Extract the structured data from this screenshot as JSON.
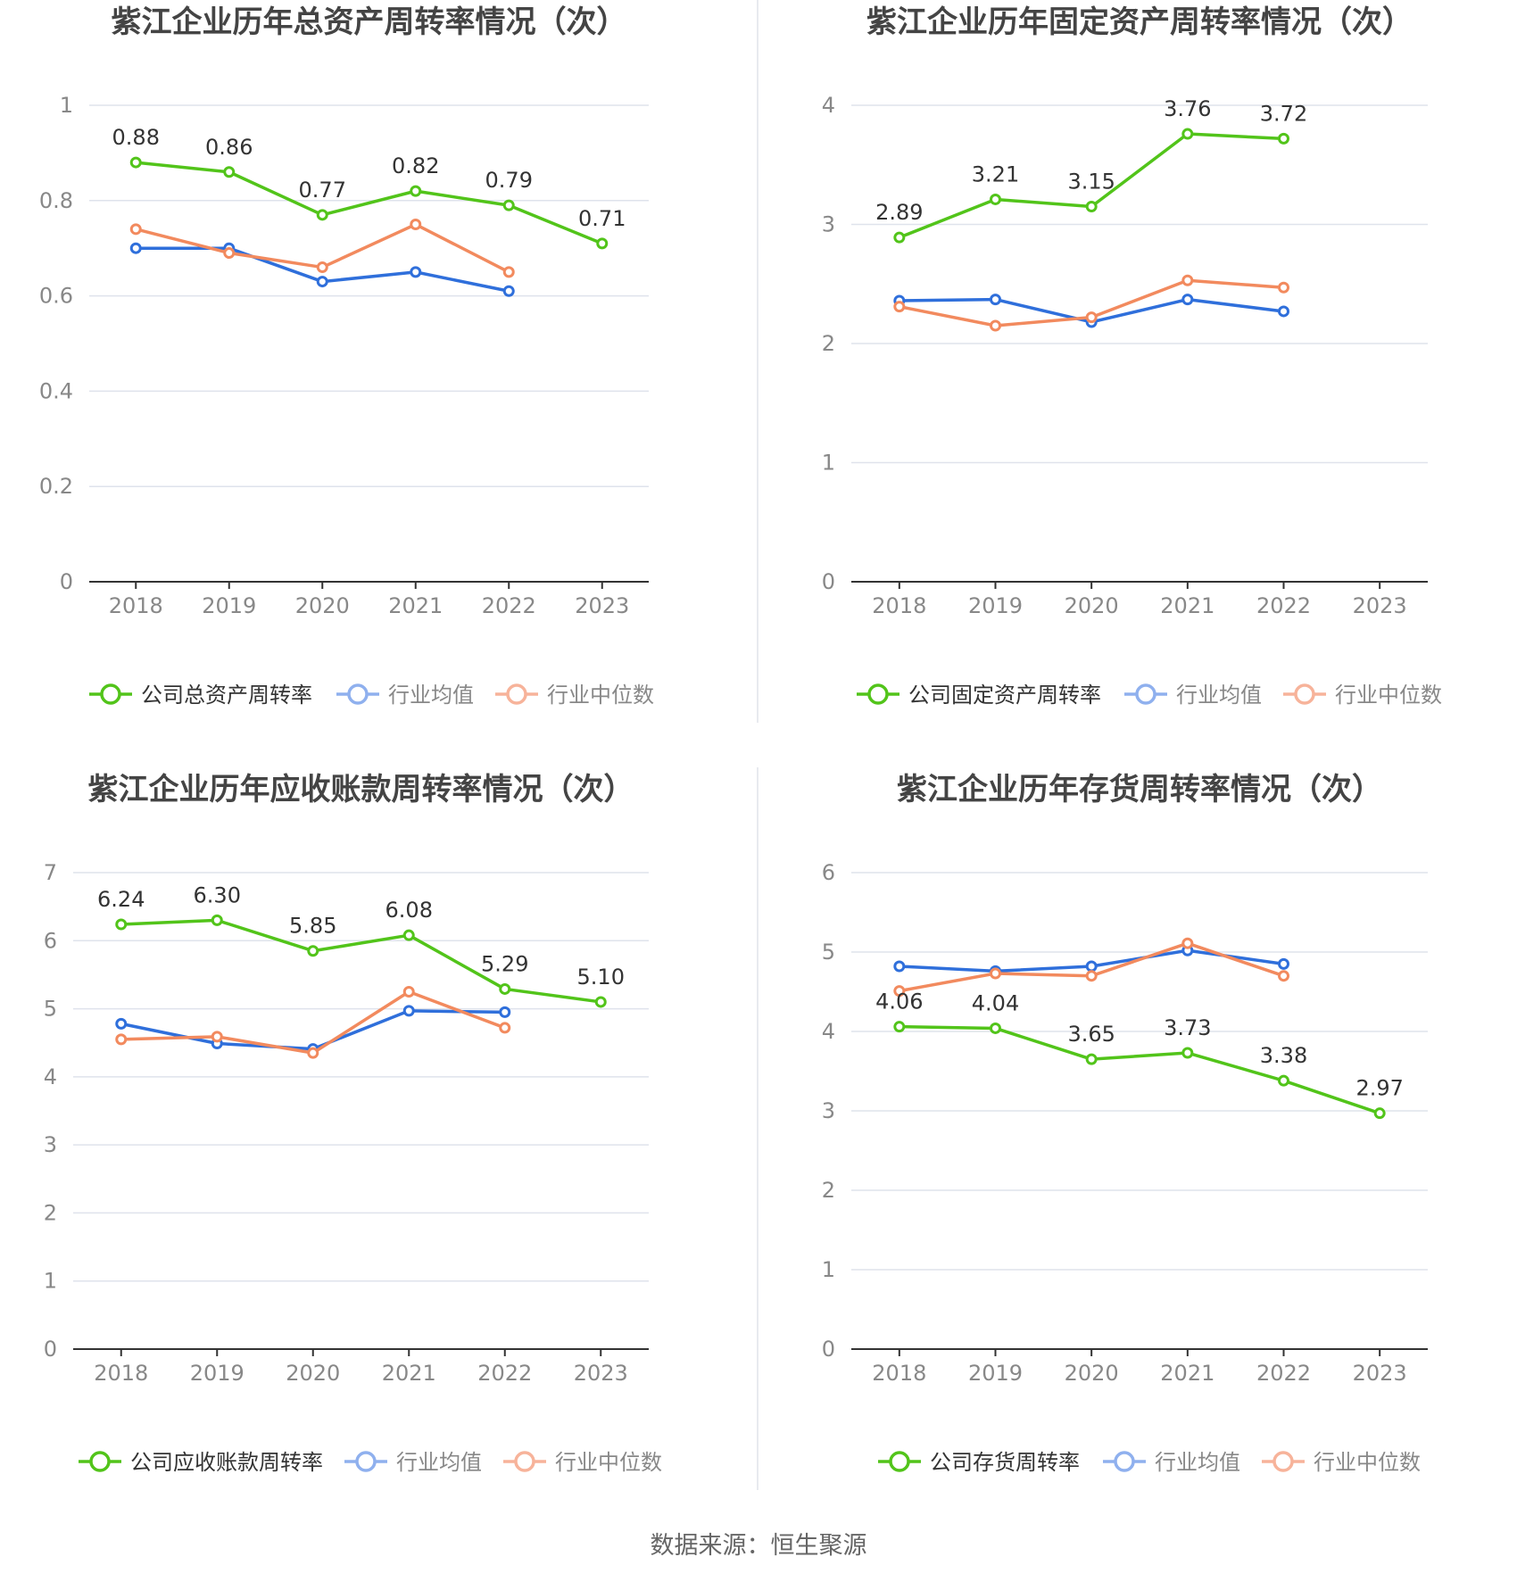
{
  "colors": {
    "company": "#52c41a",
    "industry_avg": "#2f6fdb",
    "industry_median": "#f28a5e",
    "legend_avg": "#8fb0ee",
    "legend_median": "#f7b39a",
    "grid": "#dfe3ec",
    "axis": "#333333",
    "tick_text": "#888888",
    "title_text": "#444444"
  },
  "source_text": "数据来源：恒生聚源",
  "chart_data": [
    {
      "type": "line",
      "title": "紫江企业历年总资产周转率情况（次）",
      "categories": [
        "2018",
        "2019",
        "2020",
        "2021",
        "2022",
        "2023"
      ],
      "ylim": [
        0,
        1
      ],
      "yticks": [
        "0",
        "0.2",
        "0.4",
        "0.6",
        "0.8",
        "1"
      ],
      "grid": true,
      "legend_position": "bottom",
      "series": [
        {
          "name": "公司总资产周转率",
          "values": [
            0.88,
            0.86,
            0.77,
            0.82,
            0.79,
            0.71
          ],
          "labels": [
            "0.88",
            "0.86",
            "0.77",
            "0.82",
            "0.79",
            "0.71"
          ]
        },
        {
          "name": "行业均值",
          "values": [
            0.7,
            0.7,
            0.63,
            0.65,
            0.61,
            null
          ]
        },
        {
          "name": "行业中位数",
          "values": [
            0.74,
            0.69,
            0.66,
            0.75,
            0.65,
            null
          ]
        }
      ]
    },
    {
      "type": "line",
      "title": "紫江企业历年固定资产周转率情况（次）",
      "categories": [
        "2018",
        "2019",
        "2020",
        "2021",
        "2022",
        "2023"
      ],
      "ylim": [
        0,
        4
      ],
      "yticks": [
        "0",
        "1",
        "2",
        "3",
        "4"
      ],
      "grid": true,
      "legend_position": "bottom",
      "series": [
        {
          "name": "公司固定资产周转率",
          "values": [
            2.89,
            3.21,
            3.15,
            3.76,
            3.72,
            null
          ],
          "labels": [
            "2.89",
            "3.21",
            "3.15",
            "3.76",
            "3.72",
            null
          ]
        },
        {
          "name": "行业均值",
          "values": [
            2.36,
            2.37,
            2.18,
            2.37,
            2.27,
            null
          ]
        },
        {
          "name": "行业中位数",
          "values": [
            2.31,
            2.15,
            2.22,
            2.53,
            2.47,
            null
          ]
        }
      ]
    },
    {
      "type": "line",
      "title": "紫江企业历年应收账款周转率情况（次）",
      "categories": [
        "2018",
        "2019",
        "2020",
        "2021",
        "2022",
        "2023"
      ],
      "ylim": [
        0,
        7
      ],
      "yticks": [
        "0",
        "1",
        "2",
        "3",
        "4",
        "5",
        "6",
        "7"
      ],
      "grid": true,
      "legend_position": "bottom",
      "series": [
        {
          "name": "公司应收账款周转率",
          "values": [
            6.24,
            6.3,
            5.85,
            6.08,
            5.29,
            5.1
          ],
          "labels": [
            "6.24",
            "6.30",
            "5.85",
            "6.08",
            "5.29",
            "5.10"
          ]
        },
        {
          "name": "行业均值",
          "values": [
            4.78,
            4.49,
            4.41,
            4.97,
            4.95,
            null
          ]
        },
        {
          "name": "行业中位数",
          "values": [
            4.55,
            4.59,
            4.35,
            5.25,
            4.72,
            null
          ]
        }
      ]
    },
    {
      "type": "line",
      "title": "紫江企业历年存货周转率情况（次）",
      "categories": [
        "2018",
        "2019",
        "2020",
        "2021",
        "2022",
        "2023"
      ],
      "ylim": [
        0,
        6
      ],
      "yticks": [
        "0",
        "1",
        "2",
        "3",
        "4",
        "5",
        "6"
      ],
      "grid": true,
      "legend_position": "bottom",
      "series": [
        {
          "name": "公司存货周转率",
          "values": [
            4.06,
            4.04,
            3.65,
            3.73,
            3.38,
            2.97
          ],
          "labels": [
            "4.06",
            "4.04",
            "3.65",
            "3.73",
            "3.38",
            "2.97"
          ]
        },
        {
          "name": "行业均值",
          "values": [
            4.82,
            4.76,
            4.82,
            5.02,
            4.85,
            null
          ]
        },
        {
          "name": "行业中位数",
          "values": [
            4.51,
            4.73,
            4.7,
            5.11,
            4.7,
            null
          ]
        }
      ]
    }
  ]
}
